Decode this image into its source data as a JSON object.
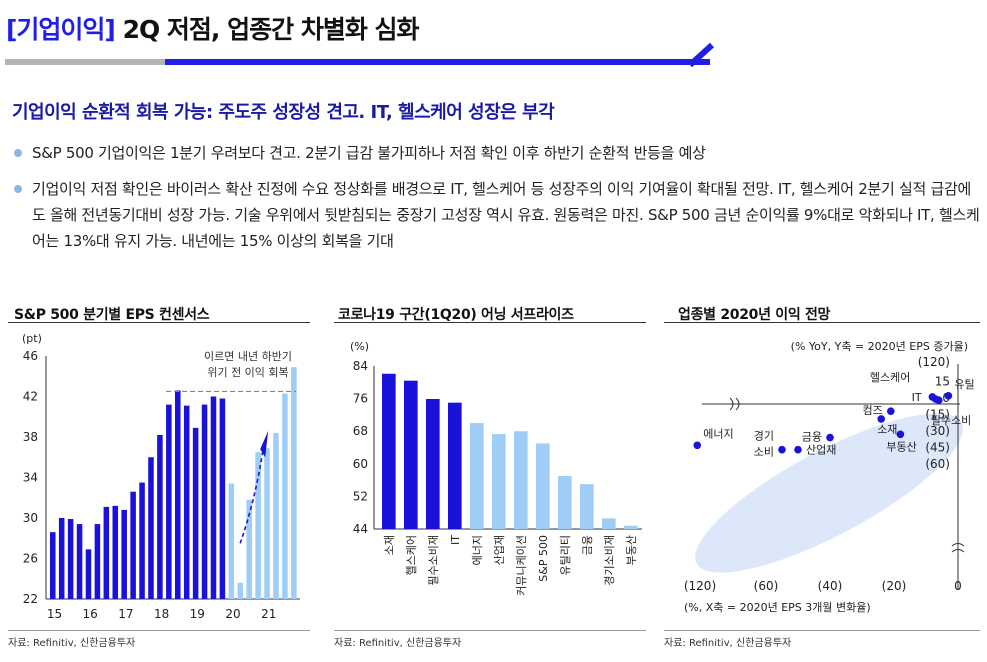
{
  "header": {
    "tag": "[기업이익]",
    "title": "2Q 저점, 업종간 차별화 심화"
  },
  "subtitle": "기업이익 순환적 회복 가능: 주도주 성장성 견고. IT, 헬스케어 성장은 부각",
  "bullets": [
    "S&P 500 기업이익은 1분기 우려보다 견고. 2분기 급감 불가피하나 저점 확인 이후 하반기 순환적 반등을 예상",
    "기업이익 저점 확인은 바이러스 확산 진정에 수요 정상화를 배경으로 IT, 헬스케어 등 성장주의 이익 기여율이 확대될 전망. IT, 헬스케어 2분기 실적 급감에도 올해 전년동기대비 성장 가능. 기술 우위에서 뒷받침되는 중장기 고성장 역시 유효. 원동력은 마진. S&P 500 금년 순이익률 9%대로 악화되나 IT, 헬스케어는 13%대 유지 가능. 내년에는 15% 이상의 회복을 기대"
  ],
  "panels": [
    {
      "title": "S&P 500 분기별 EPS 컨센서스",
      "source": "자료: Refinitiv, 신한금융투자"
    },
    {
      "title": "코로나19 구간(1Q20) 어닝 서프라이즈",
      "source": "자료: Refinitiv, 신한금융투자"
    },
    {
      "title": "업종별 2020년 이익 전망",
      "source": "자료: Refinitiv, 신한금융투자"
    }
  ],
  "chart_data": [
    {
      "type": "bar",
      "title": "S&P 500 분기별 EPS 컨센서스",
      "yunit": "(pt)",
      "ylim": [
        22,
        46
      ],
      "yticks": [
        22,
        26,
        30,
        34,
        38,
        42,
        46
      ],
      "xtick_labels": [
        "15",
        "16",
        "17",
        "18",
        "19",
        "20",
        "21"
      ],
      "annotation": [
        "이르면 내년 하반기",
        "위기 전 이익 회복"
      ],
      "series": [
        {
          "values": [
            28.6,
            30.0,
            29.9,
            29.4,
            26.9,
            29.4,
            31.1,
            31.2,
            30.8,
            32.6,
            33.5,
            36.0,
            38.2,
            41.2,
            42.6,
            41.1,
            38.9,
            41.2,
            42.0,
            41.8
          ],
          "color": "#1a12d8"
        },
        {
          "values": [
            33.4,
            23.6,
            31.8,
            36.5,
            36.9,
            38.4,
            42.3,
            44.9
          ],
          "color": "#9fcdf5"
        }
      ]
    },
    {
      "type": "bar",
      "title": "코로나19 구간(1Q20) 어닝 서프라이즈",
      "yunit": "(%)",
      "ylim": [
        44,
        84
      ],
      "yticks": [
        44,
        52,
        60,
        68,
        76,
        84
      ],
      "categories": [
        "소재",
        "헬스케어",
        "필수소비재",
        "IT",
        "에너지",
        "산업재",
        "커뮤니케이션",
        "S&P 500",
        "유틸리티",
        "금융",
        "경기소비재",
        "부동산"
      ],
      "values": [
        82.1,
        80.4,
        75.9,
        75.0,
        70.0,
        67.3,
        68.0,
        65.0,
        57.0,
        55.0,
        46.6,
        44.8
      ],
      "colors": [
        "#1a12d8",
        "#1a12d8",
        "#1a12d8",
        "#1a12d8",
        "#9fcdf5",
        "#9fcdf5",
        "#9fcdf5",
        "#9fcdf5",
        "#9fcdf5",
        "#9fcdf5",
        "#9fcdf5",
        "#9fcdf5"
      ]
    },
    {
      "type": "scatter",
      "title": "업종별 2020년 이익 전망",
      "ylabel": "(% YoY, Y축 = 2020년 EPS 증가율)",
      "xlabel": "(%, X축 = 2020년 EPS 3개월 변화율)",
      "xticks": [
        -120,
        -60,
        -40,
        -20,
        0
      ],
      "xtick_labels": [
        "(120)",
        "(60)",
        "(40)",
        "(20)",
        "0"
      ],
      "yticks": [
        15,
        0,
        -15,
        -30,
        -45,
        -60,
        -120
      ],
      "ytick_labels": [
        "15",
        "0",
        "(15)",
        "(30)",
        "(45)",
        "(60)",
        "(120)"
      ],
      "points": [
        {
          "label": "유틸",
          "x": -3,
          "y": 2
        },
        {
          "label": "헬스케어",
          "x": -8,
          "y": 1
        },
        {
          "label": "IT",
          "x": -7,
          "y": -1
        },
        {
          "label": "필수소비",
          "x": -6,
          "y": -2
        },
        {
          "label": "컴즈",
          "x": -21,
          "y": -12
        },
        {
          "label": "소재",
          "x": -24,
          "y": -19
        },
        {
          "label": "부동산",
          "x": -18,
          "y": -33
        },
        {
          "label": "금융",
          "x": -40,
          "y": -36
        },
        {
          "label": "산업재",
          "x": -50,
          "y": -47
        },
        {
          "label": "경기소비",
          "x": -55,
          "y": -47
        },
        {
          "label": "에너지",
          "x": -125,
          "y": -71
        }
      ],
      "color": "#1a12d8"
    }
  ]
}
